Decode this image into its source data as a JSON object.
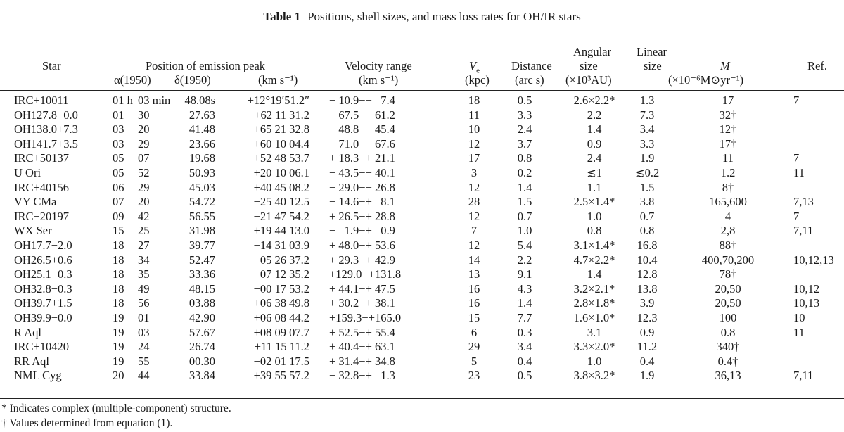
{
  "table": {
    "label": "Table 1",
    "title": "Positions, shell sizes, and mass loss rates for OH/IR stars",
    "headers": {
      "star": "Star",
      "position_of_emission_peak": "Position of emission peak",
      "ra": "α(1950)",
      "dec": "δ(1950)",
      "pos_units": "(km s⁻¹)",
      "velocity_range": "Velocity range",
      "velocity_units": "(km s⁻¹)",
      "ve": "V",
      "ve_sub": "e",
      "ve_units": "(kpc)",
      "distance": "Distance",
      "distance_units": "(arc s)",
      "angular_size_1": "Angular",
      "angular_size_2": "size",
      "angular_units": "(×10³AU)",
      "linear_size_1": "Linear",
      "linear_size_2": "size",
      "m": "M",
      "m_units": "(×10⁻⁶M⊙yr⁻¹)",
      "ref": "Ref."
    },
    "rows": [
      {
        "star": "IRC+10011",
        "ra_h": "01 h",
        "ra_m": "03 min",
        "ra_s": "48.08s",
        "dec": "+12°19′51.2″",
        "vel": "− 10.9−−   7.4",
        "ve": "18",
        "dist": "0.5",
        "ang": "2.6×2.2*",
        "lin": "1.3",
        "m": "17",
        "ref": "7"
      },
      {
        "star": "OH127.8−0.0",
        "ra_h": "01",
        "ra_m": "30",
        "ra_s": "27.63",
        "dec": "+62 11 31.2",
        "vel": "− 67.5−− 61.2",
        "ve": "11",
        "dist": "3.3",
        "ang": "2.2",
        "lin": "7.3",
        "m": "32†",
        "ref": ""
      },
      {
        "star": "OH138.0+7.3",
        "ra_h": "03",
        "ra_m": "20",
        "ra_s": "41.48",
        "dec": "+65 21 32.8",
        "vel": "− 48.8−− 45.4",
        "ve": "10",
        "dist": "2.4",
        "ang": "1.4",
        "lin": "3.4",
        "m": "12†",
        "ref": ""
      },
      {
        "star": "OH141.7+3.5",
        "ra_h": "03",
        "ra_m": "29",
        "ra_s": "23.66",
        "dec": "+60 10 04.4",
        "vel": "− 71.0−− 67.6",
        "ve": "12",
        "dist": "3.7",
        "ang": "0.9",
        "lin": "3.3",
        "m": "17†",
        "ref": ""
      },
      {
        "star": "IRC+50137",
        "ra_h": "05",
        "ra_m": "07",
        "ra_s": "19.68",
        "dec": "+52 48 53.7",
        "vel": "+ 18.3−+ 21.1",
        "ve": "17",
        "dist": "0.8",
        "ang": "2.4",
        "lin": "1.9",
        "m": "11",
        "ref": "7"
      },
      {
        "star": "U Ori",
        "ra_h": "05",
        "ra_m": "52",
        "ra_s": "50.93",
        "dec": "+20 10 06.1",
        "vel": "− 43.5−− 40.1",
        "ve": "3",
        "dist": "0.2",
        "ang": "≲1",
        "lin": "≲0.2",
        "m": "1.2",
        "ref": "11"
      },
      {
        "star": "IRC+40156",
        "ra_h": "06",
        "ra_m": "29",
        "ra_s": "45.03",
        "dec": "+40 45 08.2",
        "vel": "− 29.0−− 26.8",
        "ve": "12",
        "dist": "1.4",
        "ang": "1.1",
        "lin": "1.5",
        "m": "8†",
        "ref": ""
      },
      {
        "star": "VY CMa",
        "ra_h": "07",
        "ra_m": "20",
        "ra_s": "54.72",
        "dec": "−25 40 12.5",
        "vel": "− 14.6−+   8.1",
        "ve": "28",
        "dist": "1.5",
        "ang": "2.5×1.4*",
        "lin": "3.8",
        "m": "165,600",
        "ref": "7,13"
      },
      {
        "star": "IRC−20197",
        "ra_h": "09",
        "ra_m": "42",
        "ra_s": "56.55",
        "dec": "−21 47 54.2",
        "vel": "+ 26.5−+ 28.8",
        "ve": "12",
        "dist": "0.7",
        "ang": "1.0",
        "lin": "0.7",
        "m": "4",
        "ref": "7"
      },
      {
        "star": "WX Ser",
        "ra_h": "15",
        "ra_m": "25",
        "ra_s": "31.98",
        "dec": "+19 44 13.0",
        "vel": "−   1.9−+   0.9",
        "ve": "7",
        "dist": "1.0",
        "ang": "0.8",
        "lin": "0.8",
        "m": "2,8",
        "ref": "7,11"
      },
      {
        "star": "OH17.7−2.0",
        "ra_h": "18",
        "ra_m": "27",
        "ra_s": "39.77",
        "dec": "−14 31 03.9",
        "vel": "+ 48.0−+ 53.6",
        "ve": "12",
        "dist": "5.4",
        "ang": "3.1×1.4*",
        "lin": "16.8",
        "m": "88†",
        "ref": ""
      },
      {
        "star": "OH26.5+0.6",
        "ra_h": "18",
        "ra_m": "34",
        "ra_s": "52.47",
        "dec": "−05 26 37.2",
        "vel": "+ 29.3−+ 42.9",
        "ve": "14",
        "dist": "2.2",
        "ang": "4.7×2.2*",
        "lin": "10.4",
        "m": "400,70,200",
        "ref": "10,12,13"
      },
      {
        "star": "OH25.1−0.3",
        "ra_h": "18",
        "ra_m": "35",
        "ra_s": "33.36",
        "dec": "−07 12 35.2",
        "vel": "+129.0−+131.8",
        "ve": "13",
        "dist": "9.1",
        "ang": "1.4",
        "lin": "12.8",
        "m": "78†",
        "ref": ""
      },
      {
        "star": "OH32.8−0.3",
        "ra_h": "18",
        "ra_m": "49",
        "ra_s": "48.15",
        "dec": "−00 17 53.2",
        "vel": "+ 44.1−+ 47.5",
        "ve": "16",
        "dist": "4.3",
        "ang": "3.2×2.1*",
        "lin": "13.8",
        "m": "20,50",
        "ref": "10,12"
      },
      {
        "star": "OH39.7+1.5",
        "ra_h": "18",
        "ra_m": "56",
        "ra_s": "03.88",
        "dec": "+06 38 49.8",
        "vel": "+ 30.2−+ 38.1",
        "ve": "16",
        "dist": "1.4",
        "ang": "2.8×1.8*",
        "lin": "3.9",
        "m": "20,50",
        "ref": "10,13"
      },
      {
        "star": "OH39.9−0.0",
        "ra_h": "19",
        "ra_m": "01",
        "ra_s": "42.90",
        "dec": "+06 08 44.2",
        "vel": "+159.3−+165.0",
        "ve": "15",
        "dist": "7.7",
        "ang": "1.6×1.0*",
        "lin": "12.3",
        "m": "100",
        "ref": "10"
      },
      {
        "star": "R Aql",
        "ra_h": "19",
        "ra_m": "03",
        "ra_s": "57.67",
        "dec": "+08 09 07.7",
        "vel": "+ 52.5−+ 55.4",
        "ve": "6",
        "dist": "0.3",
        "ang": "3.1",
        "lin": "0.9",
        "m": "0.8",
        "ref": "11"
      },
      {
        "star": "IRC+10420",
        "ra_h": "19",
        "ra_m": "24",
        "ra_s": "26.74",
        "dec": "+11 15 11.2",
        "vel": "+ 40.4−+ 63.1",
        "ve": "29",
        "dist": "3.4",
        "ang": "3.3×2.0*",
        "lin": "11.2",
        "m": "340†",
        "ref": ""
      },
      {
        "star": "RR Aql",
        "ra_h": "19",
        "ra_m": "55",
        "ra_s": "00.30",
        "dec": "−02 01 17.5",
        "vel": "+ 31.4−+ 34.8",
        "ve": "5",
        "dist": "0.4",
        "ang": "1.0",
        "lin": "0.4",
        "m": "0.4†",
        "ref": ""
      },
      {
        "star": "NML Cyg",
        "ra_h": "20",
        "ra_m": "44",
        "ra_s": "33.84",
        "dec": "+39 55 57.2",
        "vel": "− 32.8−+   1.3",
        "ve": "23",
        "dist": "0.5",
        "ang": "3.8×3.2*",
        "lin": "1.9",
        "m": "36,13",
        "ref": "7,11"
      }
    ],
    "footnotes": [
      "* Indicates complex (multiple-component) structure.",
      "† Values determined from equation (1)."
    ]
  }
}
